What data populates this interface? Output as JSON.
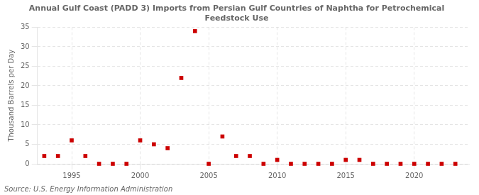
{
  "chart_data": {
    "type": "scatter",
    "title": "Annual Gulf Coast (PADD 3) Imports from Persian Gulf Countries of Naphtha for Petrochemical\nFeedstock Use",
    "ylabel": "Thousand Barrels per Day",
    "annotations": [
      "Source: U.S. Energy Information Administration"
    ],
    "x": [
      1993,
      1994,
      1995,
      1996,
      1997,
      1998,
      1999,
      2000,
      2001,
      2002,
      2003,
      2004,
      2005,
      2006,
      2007,
      2008,
      2009,
      2010,
      2011,
      2012,
      2013,
      2014,
      2015,
      2016,
      2017,
      2018,
      2019,
      2020,
      2021,
      2022,
      2023
    ],
    "values": [
      2,
      2,
      6,
      2,
      0,
      0,
      0,
      6,
      5,
      4,
      22,
      34,
      0,
      7,
      2,
      2,
      0,
      1,
      0,
      0,
      0,
      0,
      1,
      1,
      0,
      0,
      0,
      0,
      0,
      0,
      0
    ],
    "color": "#cc0000",
    "marker": "square",
    "xlim": [
      1992.5,
      2024
    ],
    "xticks": [
      1995,
      2000,
      2005,
      2010,
      2015,
      2020
    ],
    "ylim": [
      0,
      35
    ],
    "yticks": [
      0,
      5,
      10,
      15,
      20,
      25,
      30,
      35
    ],
    "grid": true
  }
}
